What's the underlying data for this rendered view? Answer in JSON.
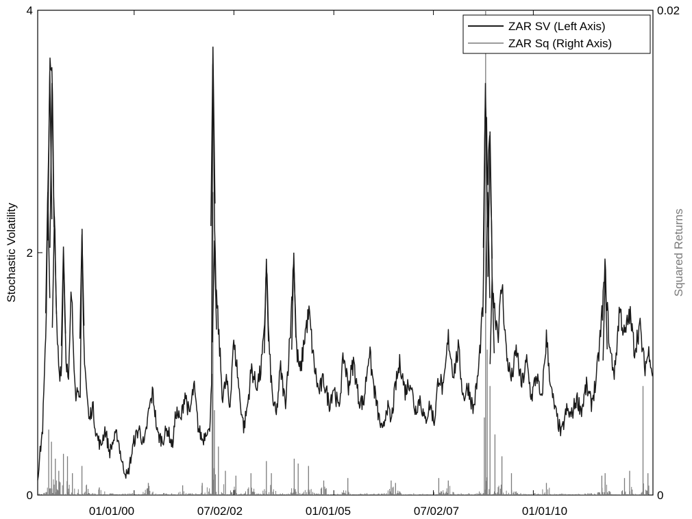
{
  "chart_data": {
    "type": "line",
    "title": "",
    "xlabel": "",
    "ylabel_left": "Stochastic Volatility",
    "ylabel_right": "Squared Returns",
    "x_range": [
      "1997-08-01",
      "2012-12-31"
    ],
    "x_ticks": [
      {
        "date": "2000-01-01",
        "label": "01/01/00"
      },
      {
        "date": "2002-07-02",
        "label": "07/02/02"
      },
      {
        "date": "2005-01-01",
        "label": "01/01/05"
      },
      {
        "date": "2007-07-02",
        "label": "07/02/07"
      },
      {
        "date": "2010-01-01",
        "label": "01/01/10"
      }
    ],
    "ylim_left": [
      0,
      4
    ],
    "ylim_right": [
      0,
      0.02
    ],
    "y_ticks_left": [
      {
        "value": 0,
        "label": "0"
      },
      {
        "value": 2,
        "label": "2"
      },
      {
        "value": 4,
        "label": "4"
      }
    ],
    "y_ticks_right": [
      {
        "value": 0,
        "label": "0"
      },
      {
        "value": 0.02,
        "label": "0.02"
      }
    ],
    "grid": false,
    "legend_position": "top-right",
    "colors": {
      "sv": "#1a1a1a",
      "sq": "#7a7a7a",
      "axis": "#000000",
      "right_label": "#7a7a7a"
    },
    "series": [
      {
        "name": "ZAR SV (Left Axis)",
        "axis": "left",
        "color": "#1a1a1a",
        "points": [
          [
            "1997-08-01",
            0.15
          ],
          [
            "1997-09-15",
            0.55
          ],
          [
            "1997-10-15",
            1.3
          ],
          [
            "1997-11-01",
            2.5
          ],
          [
            "1997-11-20",
            3.5
          ],
          [
            "1997-12-10",
            3.4
          ],
          [
            "1998-01-01",
            2.3
          ],
          [
            "1998-01-20",
            1.4
          ],
          [
            "1998-02-15",
            1.0
          ],
          [
            "1998-03-10",
            1.1
          ],
          [
            "1998-03-25",
            2.05
          ],
          [
            "1998-04-15",
            1.2
          ],
          [
            "1998-05-10",
            0.9
          ],
          [
            "1998-06-05",
            1.7
          ],
          [
            "1998-06-25",
            1.2
          ],
          [
            "1998-07-20",
            0.8
          ],
          [
            "1998-08-10",
            0.95
          ],
          [
            "1998-08-25",
            0.7
          ],
          [
            "1998-09-10",
            2.15
          ],
          [
            "1998-09-25",
            1.3
          ],
          [
            "1998-10-20",
            0.9
          ],
          [
            "1998-11-15",
            0.6
          ],
          [
            "1998-12-15",
            0.75
          ],
          [
            "1999-01-20",
            0.5
          ],
          [
            "1999-03-01",
            0.4
          ],
          [
            "1999-04-10",
            0.55
          ],
          [
            "1999-05-20",
            0.35
          ],
          [
            "1999-06-25",
            0.45
          ],
          [
            "1999-08-01",
            0.5
          ],
          [
            "1999-09-15",
            0.25
          ],
          [
            "1999-11-01",
            0.15
          ],
          [
            "1999-12-01",
            0.3
          ],
          [
            "2000-01-01",
            0.45
          ],
          [
            "2000-02-15",
            0.55
          ],
          [
            "2000-04-01",
            0.4
          ],
          [
            "2000-05-15",
            0.7
          ],
          [
            "2000-06-20",
            0.85
          ],
          [
            "2000-08-01",
            0.5
          ],
          [
            "2000-09-15",
            0.45
          ],
          [
            "2000-11-01",
            0.55
          ],
          [
            "2000-12-15",
            0.4
          ],
          [
            "2001-01-20",
            0.7
          ],
          [
            "2001-03-01",
            0.6
          ],
          [
            "2001-04-10",
            0.85
          ],
          [
            "2001-05-20",
            0.65
          ],
          [
            "2001-07-01",
            0.9
          ],
          [
            "2001-08-10",
            0.55
          ],
          [
            "2001-09-20",
            0.45
          ],
          [
            "2001-10-25",
            0.55
          ],
          [
            "2001-11-20",
            0.5
          ],
          [
            "2001-12-10",
            1.0
          ],
          [
            "2001-12-22",
            3.7
          ],
          [
            "2002-01-05",
            2.1
          ],
          [
            "2002-01-25",
            1.6
          ],
          [
            "2002-02-15",
            1.3
          ],
          [
            "2002-03-20",
            0.8
          ],
          [
            "2002-04-25",
            0.95
          ],
          [
            "2002-05-25",
            0.7
          ],
          [
            "2002-06-25",
            1.25
          ],
          [
            "2002-07-25",
            1.1
          ],
          [
            "2002-08-25",
            0.8
          ],
          [
            "2002-10-01",
            0.55
          ],
          [
            "2002-11-05",
            0.75
          ],
          [
            "2002-12-10",
            1.05
          ],
          [
            "2003-01-20",
            0.9
          ],
          [
            "2003-03-01",
            1.0
          ],
          [
            "2003-04-05",
            1.3
          ],
          [
            "2003-04-25",
            1.95
          ],
          [
            "2003-05-20",
            1.2
          ],
          [
            "2003-06-20",
            0.8
          ],
          [
            "2003-07-25",
            0.65
          ],
          [
            "2003-09-01",
            1.05
          ],
          [
            "2003-10-15",
            0.75
          ],
          [
            "2003-12-01",
            1.35
          ],
          [
            "2004-01-01",
            2.0
          ],
          [
            "2004-01-25",
            1.2
          ],
          [
            "2004-03-01",
            1.0
          ],
          [
            "2004-04-15",
            1.35
          ],
          [
            "2004-05-20",
            1.5
          ],
          [
            "2004-07-01",
            1.1
          ],
          [
            "2004-08-15",
            0.85
          ],
          [
            "2004-10-01",
            0.95
          ],
          [
            "2004-11-20",
            0.75
          ],
          [
            "2005-01-01",
            0.9
          ],
          [
            "2005-02-15",
            0.7
          ],
          [
            "2005-04-01",
            1.15
          ],
          [
            "2005-05-15",
            0.9
          ],
          [
            "2005-07-01",
            1.1
          ],
          [
            "2005-08-15",
            0.8
          ],
          [
            "2005-10-01",
            0.75
          ],
          [
            "2005-11-20",
            1.2
          ],
          [
            "2006-01-01",
            0.9
          ],
          [
            "2006-02-15",
            0.65
          ],
          [
            "2006-03-25",
            0.5
          ],
          [
            "2006-05-01",
            0.75
          ],
          [
            "2006-06-10",
            0.6
          ],
          [
            "2006-07-20",
            0.9
          ],
          [
            "2006-09-01",
            1.1
          ],
          [
            "2006-10-15",
            0.85
          ],
          [
            "2006-12-01",
            0.95
          ],
          [
            "2007-01-15",
            0.7
          ],
          [
            "2007-03-01",
            0.8
          ],
          [
            "2007-04-15",
            0.6
          ],
          [
            "2007-06-01",
            0.75
          ],
          [
            "2007-07-10",
            0.6
          ],
          [
            "2007-08-20",
            1.0
          ],
          [
            "2007-10-01",
            0.85
          ],
          [
            "2007-11-15",
            1.3
          ],
          [
            "2008-01-01",
            1.0
          ],
          [
            "2008-02-15",
            1.2
          ],
          [
            "2008-04-01",
            0.8
          ],
          [
            "2008-05-15",
            0.9
          ],
          [
            "2008-07-01",
            0.7
          ],
          [
            "2008-08-15",
            1.0
          ],
          [
            "2008-10-01",
            1.6
          ],
          [
            "2008-10-20",
            3.4
          ],
          [
            "2008-11-10",
            2.5
          ],
          [
            "2008-12-01",
            3.0
          ],
          [
            "2008-12-20",
            1.8
          ],
          [
            "2009-01-15",
            1.5
          ],
          [
            "2009-02-15",
            1.35
          ],
          [
            "2009-03-20",
            1.75
          ],
          [
            "2009-05-01",
            1.15
          ],
          [
            "2009-06-15",
            0.95
          ],
          [
            "2009-08-01",
            1.2
          ],
          [
            "2009-09-15",
            0.9
          ],
          [
            "2009-11-01",
            1.1
          ],
          [
            "2009-12-15",
            0.8
          ],
          [
            "2010-02-01",
            1.0
          ],
          [
            "2010-03-15",
            0.75
          ],
          [
            "2010-05-01",
            1.3
          ],
          [
            "2010-06-15",
            0.85
          ],
          [
            "2010-08-01",
            0.65
          ],
          [
            "2010-09-15",
            0.5
          ],
          [
            "2010-11-01",
            0.7
          ],
          [
            "2010-12-15",
            0.65
          ],
          [
            "2011-02-01",
            0.8
          ],
          [
            "2011-03-20",
            0.7
          ],
          [
            "2011-05-01",
            0.9
          ],
          [
            "2011-06-15",
            0.75
          ],
          [
            "2011-08-01",
            0.95
          ],
          [
            "2011-09-15",
            1.4
          ],
          [
            "2011-10-20",
            1.85
          ],
          [
            "2011-12-01",
            1.2
          ],
          [
            "2012-01-15",
            1.0
          ],
          [
            "2012-03-01",
            1.55
          ],
          [
            "2012-04-15",
            1.3
          ],
          [
            "2012-06-01",
            1.5
          ],
          [
            "2012-07-15",
            1.2
          ],
          [
            "2012-09-01",
            1.4
          ],
          [
            "2012-10-15",
            1.05
          ],
          [
            "2012-12-01",
            1.2
          ],
          [
            "2012-12-31",
            0.95
          ]
        ]
      },
      {
        "name": "ZAR Sq (Right Axis)",
        "axis": "right",
        "color": "#7a7a7a",
        "spikes": [
          [
            "1997-11-10",
            0.0027
          ],
          [
            "1997-12-05",
            0.0022
          ],
          [
            "1998-01-10",
            0.0015
          ],
          [
            "1998-02-10",
            0.001
          ],
          [
            "1998-03-25",
            0.0017
          ],
          [
            "1998-05-01",
            0.0016
          ],
          [
            "1998-06-15",
            0.0009
          ],
          [
            "1998-09-10",
            0.0012
          ],
          [
            "1998-10-20",
            0.0004
          ],
          [
            "1999-02-15",
            0.0003
          ],
          [
            "2000-05-10",
            0.0005
          ],
          [
            "2001-03-20",
            0.0004
          ],
          [
            "2001-09-15",
            0.0005
          ],
          [
            "2001-12-15",
            0.005
          ],
          [
            "2001-12-22",
            0.0125
          ],
          [
            "2002-01-05",
            0.0035
          ],
          [
            "2002-02-10",
            0.002
          ],
          [
            "2002-04-15",
            0.001
          ],
          [
            "2002-07-20",
            0.0008
          ],
          [
            "2002-12-05",
            0.0009
          ],
          [
            "2003-04-25",
            0.0014
          ],
          [
            "2003-06-10",
            0.0009
          ],
          [
            "2004-01-05",
            0.0015
          ],
          [
            "2004-02-10",
            0.0013
          ],
          [
            "2004-05-15",
            0.0012
          ],
          [
            "2004-10-01",
            0.0006
          ],
          [
            "2005-05-10",
            0.0007
          ],
          [
            "2006-06-10",
            0.0006
          ],
          [
            "2006-07-20",
            0.0005
          ],
          [
            "2007-08-20",
            0.0007
          ],
          [
            "2007-11-15",
            0.0006
          ],
          [
            "2008-10-10",
            0.0032
          ],
          [
            "2008-10-22",
            0.02
          ],
          [
            "2008-11-05",
            0.006
          ],
          [
            "2008-12-01",
            0.0045
          ],
          [
            "2009-01-15",
            0.0025
          ],
          [
            "2009-03-20",
            0.0016
          ],
          [
            "2009-06-15",
            0.0009
          ],
          [
            "2010-05-01",
            0.0005
          ],
          [
            "2011-09-20",
            0.0008
          ],
          [
            "2011-10-20",
            0.0009
          ],
          [
            "2012-04-15",
            0.0007
          ],
          [
            "2012-06-01",
            0.001
          ],
          [
            "2012-10-01",
            0.0045
          ],
          [
            "2012-11-15",
            0.0009
          ]
        ]
      }
    ]
  }
}
